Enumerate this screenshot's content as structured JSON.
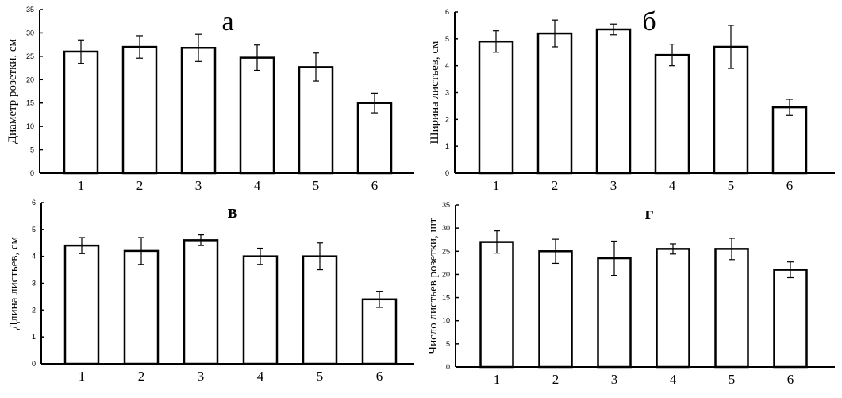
{
  "chart_data": [
    {
      "type": "bar",
      "title": "а",
      "ylabel": "Диаметр розетки, см",
      "categories": [
        "1",
        "2",
        "3",
        "4",
        "5",
        "6"
      ],
      "values": [
        26,
        27,
        26.8,
        24.7,
        22.7,
        15
      ],
      "errors": [
        2.5,
        2.4,
        2.9,
        2.7,
        3.0,
        2.1
      ],
      "ylim": [
        0,
        35
      ],
      "yticks": [
        0,
        5,
        10,
        15,
        20,
        25,
        30,
        35
      ],
      "grid": false
    },
    {
      "type": "bar",
      "title": "б",
      "ylabel": "Ширина листьев, см",
      "categories": [
        "1",
        "2",
        "3",
        "4",
        "5",
        "6"
      ],
      "values": [
        4.9,
        5.2,
        5.35,
        4.4,
        4.7,
        2.45
      ],
      "errors": [
        0.4,
        0.5,
        0.2,
        0.4,
        0.8,
        0.3
      ],
      "ylim": [
        0,
        6
      ],
      "yticks": [
        0,
        1,
        2,
        3,
        4,
        5,
        6
      ],
      "grid": false
    },
    {
      "type": "bar",
      "title": "в",
      "ylabel": "Длина листьев, см",
      "categories": [
        "1",
        "2",
        "3",
        "4",
        "5",
        "6"
      ],
      "values": [
        4.4,
        4.2,
        4.6,
        4.0,
        4.0,
        2.4
      ],
      "errors": [
        0.3,
        0.5,
        0.2,
        0.3,
        0.5,
        0.3
      ],
      "ylim": [
        0,
        6
      ],
      "yticks": [
        0,
        1,
        2,
        3,
        4,
        5,
        6
      ],
      "grid": false
    },
    {
      "type": "bar",
      "title": "г",
      "ylabel": "Число листьев розетки, шт",
      "categories": [
        "1",
        "2",
        "3",
        "4",
        "5",
        "6"
      ],
      "values": [
        27,
        25,
        23.5,
        25.5,
        25.5,
        21
      ],
      "errors": [
        2.4,
        2.6,
        3.7,
        1.1,
        2.3,
        1.7
      ],
      "ylim": [
        0,
        35
      ],
      "yticks": [
        0,
        5,
        10,
        15,
        20,
        25,
        30,
        35
      ],
      "grid": false
    }
  ]
}
